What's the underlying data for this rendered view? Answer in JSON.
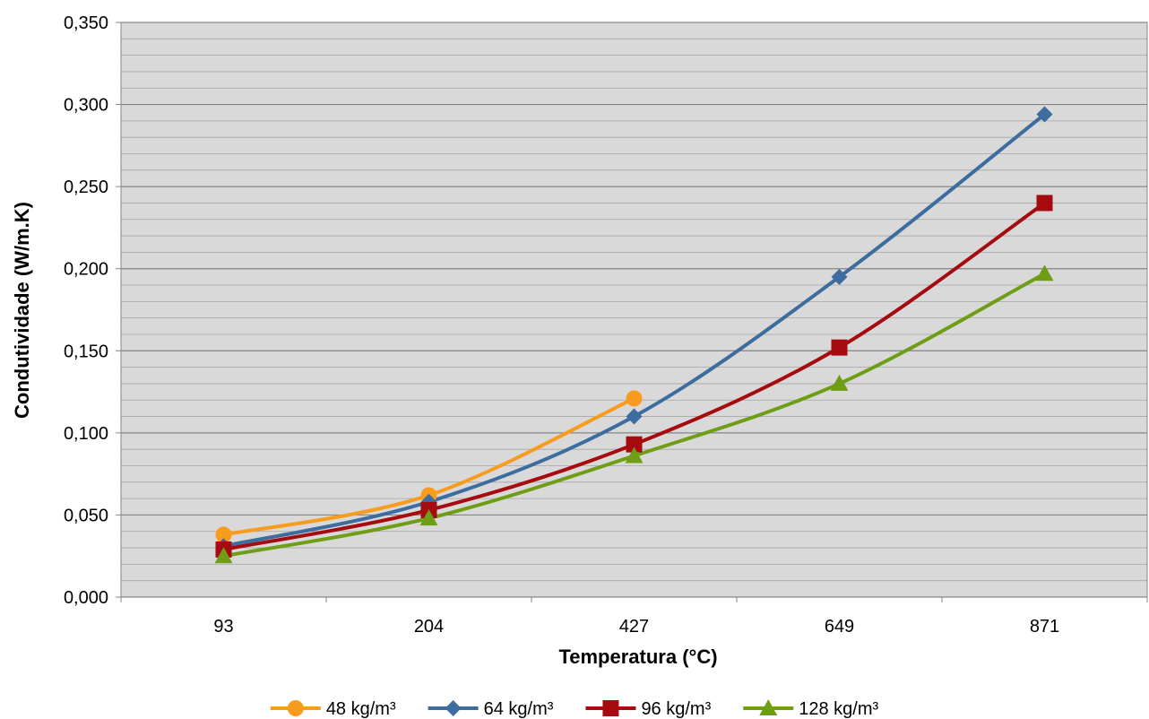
{
  "chart_data": {
    "type": "line",
    "title": "",
    "xlabel": "Temperatura (°C)",
    "ylabel": "Condutividade (W/m.K)",
    "categories": [
      "93",
      "204",
      "427",
      "649",
      "871"
    ],
    "ylim": [
      0,
      0.35
    ],
    "y_ticks": [
      0,
      0.05,
      0.1,
      0.15,
      0.2,
      0.25,
      0.3,
      0.35
    ],
    "y_tick_labels": [
      "0,000",
      "0,050",
      "0,100",
      "0,150",
      "0,200",
      "0,250",
      "0,300",
      "0,350"
    ],
    "y_minor_step": 0.01,
    "grid": true,
    "smooth": true,
    "plot_background": "#d9d9d9",
    "legend_position": "bottom",
    "series": [
      {
        "name": "48 kg/m³",
        "values": [
          0.038,
          0.062,
          0.121,
          null,
          null
        ],
        "color": "#f79c1c",
        "marker": "circle"
      },
      {
        "name": "64 kg/m³",
        "values": [
          0.031,
          0.058,
          0.11,
          0.195,
          0.294
        ],
        "color": "#3d6c9e",
        "marker": "diamond"
      },
      {
        "name": "96 kg/m³",
        "values": [
          0.029,
          0.053,
          0.093,
          0.152,
          0.24
        ],
        "color": "#a50b0f",
        "marker": "square"
      },
      {
        "name": "128 kg/m³",
        "values": [
          0.025,
          0.048,
          0.086,
          0.13,
          0.197
        ],
        "color": "#6f9e16",
        "marker": "triangle"
      }
    ]
  }
}
